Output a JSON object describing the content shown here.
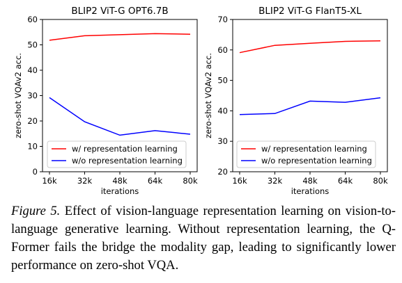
{
  "chart_data": [
    {
      "type": "line",
      "title": "BLIP2 ViT-G OPT6.7B",
      "xlabel": "iterations",
      "ylabel": "zero-shot VQAv2 acc.",
      "categories": [
        "16k",
        "32k",
        "48k",
        "64k",
        "80k"
      ],
      "ylim": [
        0,
        60
      ],
      "yticks": [
        "0",
        "10",
        "20",
        "30",
        "40",
        "50",
        "60"
      ],
      "grid": false,
      "legend_position": "lower-left",
      "series": [
        {
          "name": "w/ representation learning",
          "color": "#ff0000",
          "values": [
            51.8,
            53.6,
            54.0,
            54.4,
            54.2
          ]
        },
        {
          "name": "w/o representation learning",
          "color": "#0000ff",
          "values": [
            29.2,
            19.7,
            14.4,
            16.2,
            14.8
          ]
        }
      ]
    },
    {
      "type": "line",
      "title": "BLIP2 ViT-G FlanT5-XL",
      "xlabel": "iterations",
      "ylabel": "zero-shot VQAv2 acc.",
      "categories": [
        "16k",
        "32k",
        "48k",
        "64k",
        "80k"
      ],
      "ylim": [
        20,
        70
      ],
      "yticks": [
        "20",
        "30",
        "40",
        "50",
        "60",
        "70"
      ],
      "grid": false,
      "legend_position": "lower-right",
      "series": [
        {
          "name": "w/ representation learning",
          "color": "#ff0000",
          "values": [
            59.1,
            61.5,
            62.2,
            62.8,
            63.0
          ]
        },
        {
          "name": "w/o representation learning",
          "color": "#0000ff",
          "values": [
            38.8,
            39.1,
            43.2,
            42.8,
            44.3
          ]
        }
      ]
    }
  ],
  "caption": {
    "label": "Figure 5.",
    "text": "Effect of vision-language representation learning on vision-to-language generative learning. Without representation learning, the Q-Former fails the bridge the modality gap, leading to significantly lower performance on zero-shot VQA."
  }
}
